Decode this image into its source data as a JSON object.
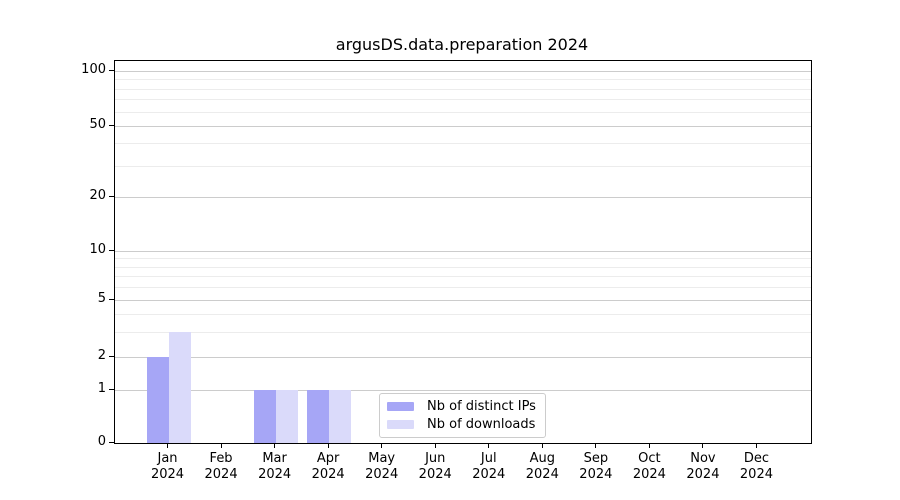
{
  "title": "argusDS.data.preparation 2024",
  "chart_data": {
    "type": "bar",
    "title": "argusDS.data.preparation 2024",
    "categories": [
      "Jan 2024",
      "Feb 2024",
      "Mar 2024",
      "Apr 2024",
      "May 2024",
      "Jun 2024",
      "Jul 2024",
      "Aug 2024",
      "Sep 2024",
      "Oct 2024",
      "Nov 2024",
      "Dec 2024"
    ],
    "series": [
      {
        "name": "Nb of distinct IPs",
        "color": "#a6a6f6",
        "values": [
          2,
          0,
          1,
          1,
          0,
          0,
          0,
          0,
          0,
          0,
          0,
          0
        ]
      },
      {
        "name": "Nb of downloads",
        "color": "#dadafa",
        "values": [
          3,
          0,
          1,
          1,
          0,
          0,
          0,
          0,
          0,
          0,
          0,
          0
        ]
      }
    ],
    "xlabel": "",
    "ylabel": "",
    "yscale": "asinh",
    "ylim": [
      0,
      115
    ],
    "y_ticks": [
      0,
      1,
      2,
      5,
      10,
      20,
      50,
      100
    ],
    "y_minor_ticks": [
      3,
      4,
      6,
      7,
      8,
      9,
      30,
      40,
      60,
      70,
      80,
      90
    ],
    "grid": "horizontal, major and minor",
    "legend_position": "inside lower-center"
  },
  "colors": {
    "bar_distinct_ips": "#a6a6f6",
    "bar_downloads": "#dadafa",
    "grid_major": "#cccccc",
    "grid_minor": "#ececec",
    "spine": "#000000",
    "background": "#ffffff"
  }
}
